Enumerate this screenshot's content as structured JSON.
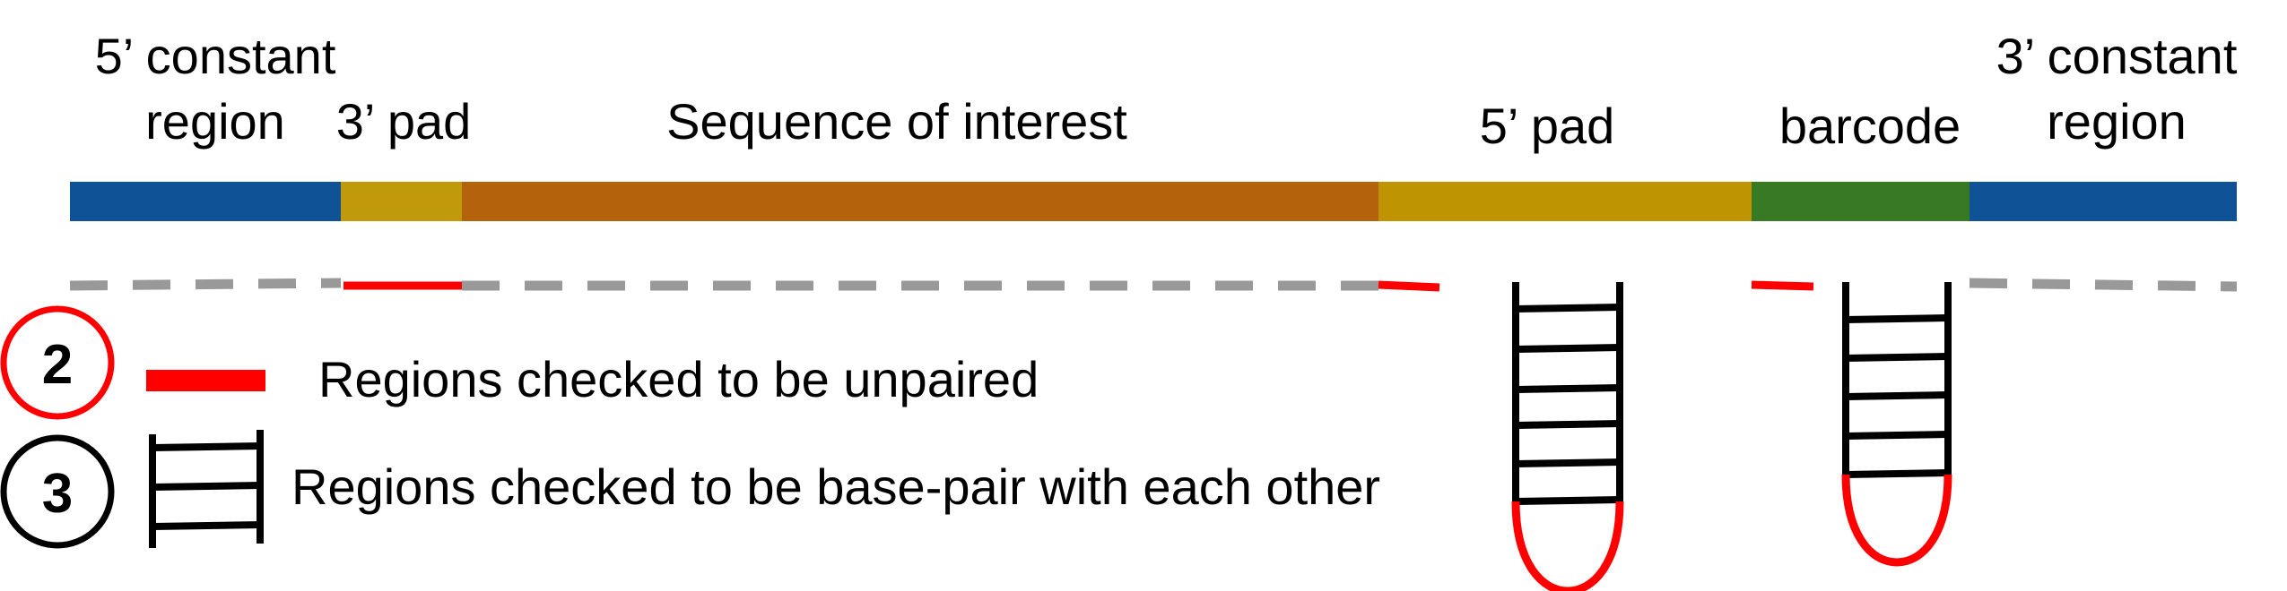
{
  "labels": {
    "five_const_1": "5’ constant",
    "five_const_2": "region",
    "three_pad": "3’ pad",
    "seq_interest": "Sequence of interest",
    "five_pad": "5’ pad",
    "barcode": "barcode",
    "three_const_1": "3’ constant",
    "three_const_2": "region"
  },
  "segments": [
    {
      "name": "5-prime-constant-region",
      "color": "#0f5296"
    },
    {
      "name": "3-prime-pad",
      "color": "#c19a0c"
    },
    {
      "name": "sequence-of-interest",
      "color": "#b5620c"
    },
    {
      "name": "5-prime-pad",
      "color": "#bf9402"
    },
    {
      "name": "barcode",
      "color": "#377a23"
    },
    {
      "name": "3-prime-constant-region",
      "color": "#0f5296"
    }
  ],
  "legend": {
    "unpaired": {
      "number": "2",
      "text": "Regions checked to be unpaired",
      "color": "#ff0000"
    },
    "basepair": {
      "number": "3",
      "text": "Regions checked to be base-pair with each other",
      "color": "#000000"
    }
  },
  "colors": {
    "dash": "#999999",
    "unpaired": "#ff0000",
    "ladder": "#000000"
  }
}
